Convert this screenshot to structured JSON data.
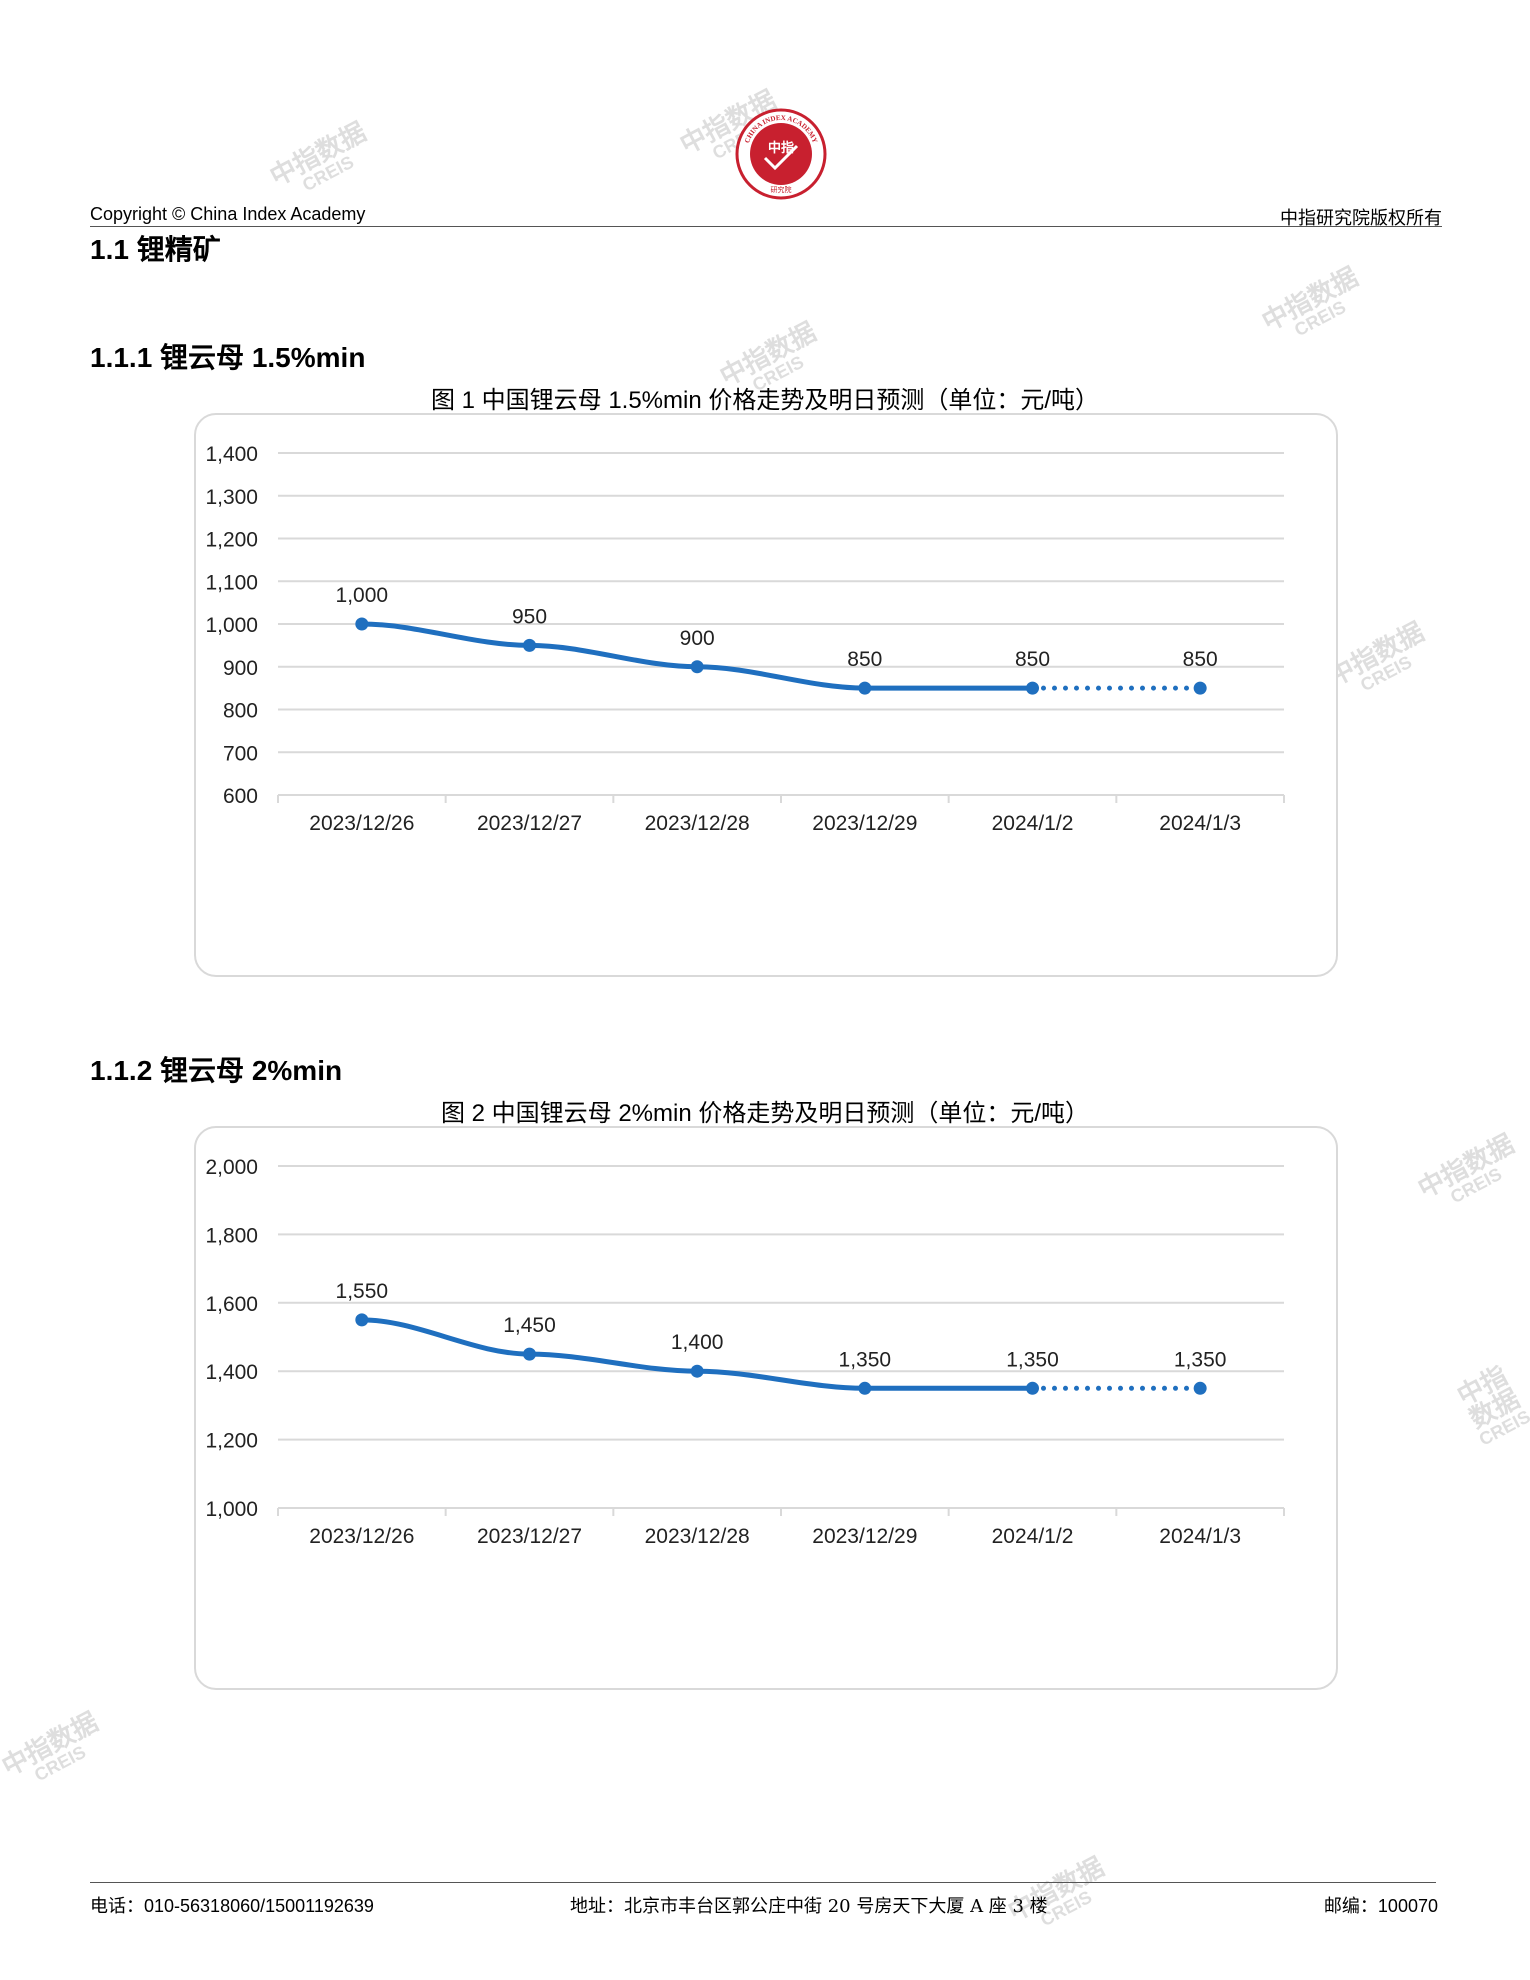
{
  "header": {
    "copyright": "Copyright © China Index Academy",
    "rights": "中指研究院版权所有",
    "logo_top_text": "CHINA INDEX ACADEMY",
    "logo_center": "中指",
    "logo_bottom": "研究院"
  },
  "watermark": {
    "cn": "中指数据",
    "en": "CREIS"
  },
  "sections": {
    "s1": "1.1 锂精矿",
    "s11": "1.1.1 锂云母 1.5%min",
    "s12": "1.1.2 锂云母 2%min"
  },
  "figures": {
    "fig1_title": "图 1 中国锂云母 1.5%min 价格走势及明日预测（单位：元/吨）",
    "fig2_title": "图 2 中国锂云母 2%min 价格走势及明日预测（单位：元/吨）"
  },
  "colors": {
    "line": "#1f6fbf",
    "grid": "#d9d9d9",
    "box": "#d9d9d9"
  },
  "chart_data": [
    {
      "type": "line",
      "categories": [
        "2023/12/26",
        "2023/12/27",
        "2023/12/28",
        "2023/12/29",
        "2024/1/2",
        "2024/1/3"
      ],
      "values": [
        1000,
        950,
        900,
        850,
        850,
        850
      ],
      "value_labels": [
        "1,000",
        "950",
        "900",
        "850",
        "850",
        "850"
      ],
      "forecast_from_index": 4,
      "ylim": [
        600,
        1400
      ],
      "yticks": [
        600,
        700,
        800,
        900,
        1000,
        1100,
        1200,
        1300,
        1400
      ],
      "ytick_labels": [
        "600",
        "700",
        "800",
        "900",
        "1,000",
        "1,100",
        "1,200",
        "1,300",
        "1,400"
      ],
      "grid": true
    },
    {
      "type": "line",
      "categories": [
        "2023/12/26",
        "2023/12/27",
        "2023/12/28",
        "2023/12/29",
        "2024/1/2",
        "2024/1/3"
      ],
      "values": [
        1550,
        1450,
        1400,
        1350,
        1350,
        1350
      ],
      "value_labels": [
        "1,550",
        "1,450",
        "1,400",
        "1,350",
        "1,350",
        "1,350"
      ],
      "forecast_from_index": 4,
      "ylim": [
        1000,
        2000
      ],
      "yticks": [
        1000,
        1200,
        1400,
        1600,
        1800,
        2000
      ],
      "ytick_labels": [
        "1,000",
        "1,200",
        "1,400",
        "1,600",
        "1,800",
        "2,000"
      ],
      "grid": true
    }
  ],
  "footer": {
    "phone": "电话：010-56318060/15001192639",
    "address": "地址：北京市丰台区郭公庄中街 20 号房天下大厦 A 座 3 楼",
    "postcode": "邮编：100070"
  }
}
